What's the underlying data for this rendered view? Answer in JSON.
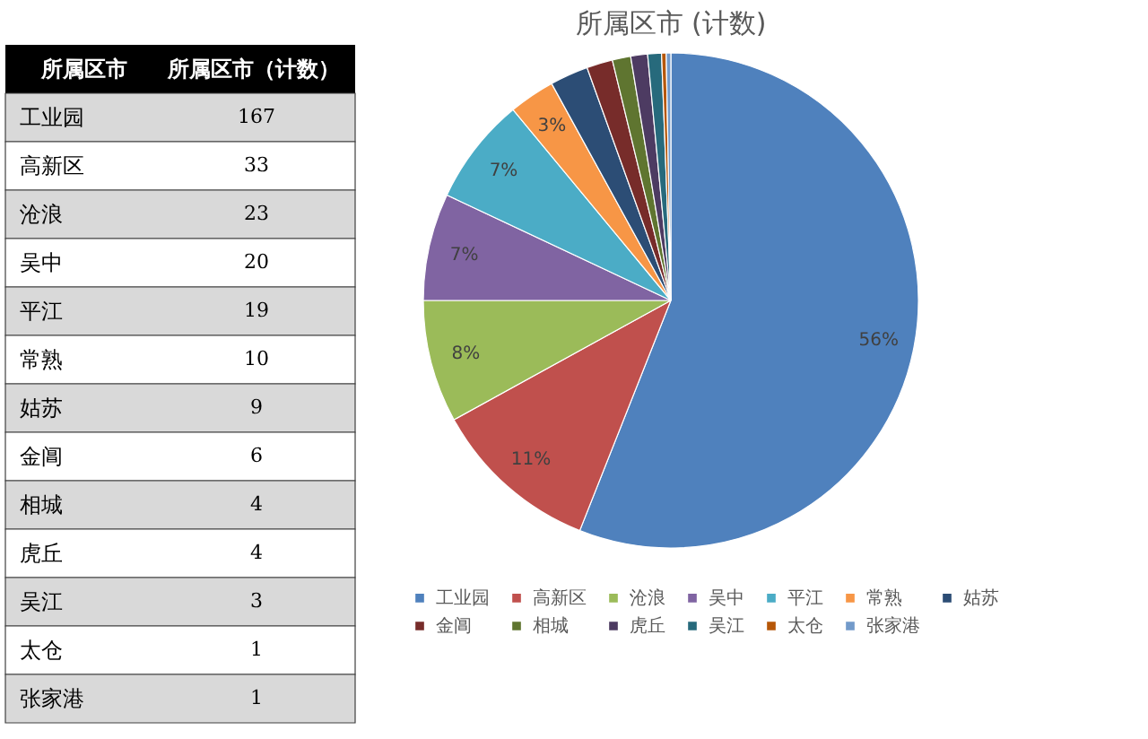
{
  "chart_data": [
    {
      "type": "other",
      "categories": [
        "工业园",
        "高新区",
        "沧浪",
        "吴中",
        "平江",
        "常熟",
        "姑苏",
        "金阊",
        "相城",
        "虎丘",
        "吴江",
        "太仓",
        "张家港"
      ],
      "values": [
        167,
        33,
        23,
        20,
        19,
        10,
        9,
        6,
        4,
        4,
        3,
        1,
        1
      ],
      "data_labels": true,
      "annotations": [
        "所属区市",
        "所属区市（计数）"
      ]
    },
    {
      "type": "pie",
      "title": "所属区市 (计数)",
      "categories": [
        "工业园",
        "高新区",
        "沧浪",
        "吴中",
        "平江",
        "常熟",
        "姑苏",
        "金阊",
        "相城",
        "虎丘",
        "吴江",
        "太仓",
        "张家港"
      ],
      "values": [
        56,
        11,
        8,
        7,
        7,
        3,
        2.5,
        1.7,
        1.2,
        1.1,
        0.9,
        0.3,
        0.3
      ],
      "colors": [
        "#4f81bd",
        "#c0504d",
        "#9bbb59",
        "#8064a2",
        "#4bacc6",
        "#f79646",
        "#2c4d75",
        "#772c2a",
        "#5f7530",
        "#4d3b62",
        "#276a7c",
        "#b65708",
        "#729aca"
      ],
      "value_labels": [
        "56%",
        "11%",
        "8%",
        "7%",
        "7%",
        "3%",
        null,
        null,
        null,
        null,
        null,
        null,
        null
      ],
      "legend": "bottom"
    }
  ]
}
